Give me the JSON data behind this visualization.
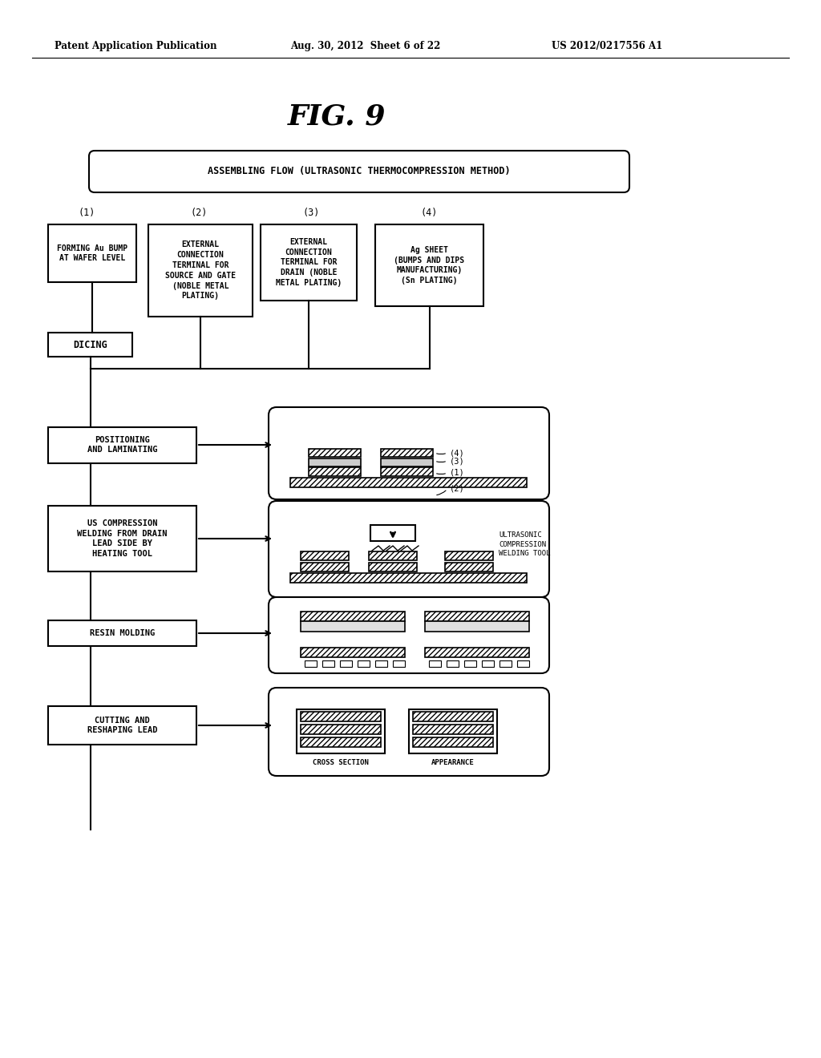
{
  "bg_color": "#ffffff",
  "header_left": "Patent Application Publication",
  "header_center": "Aug. 30, 2012  Sheet 6 of 22",
  "header_right": "US 2012/0217556 A1",
  "fig_title": "FIG. 9",
  "top_box_text": "ASSEMBLING FLOW (ULTRASONIC THERMOCOMPRESSION METHOD)",
  "step_labels": [
    "(1)",
    "(2)",
    "(3)",
    "(4)"
  ],
  "step_boxes": [
    "FORMING Au BUMP\nAT WAFER LEVEL",
    "EXTERNAL\nCONNECTION\nTERMINAL FOR\nSOURCE AND GATE\n(NOBLE METAL\nPLATING)",
    "EXTERNAL\nCONNECTION\nTERMINAL FOR\nDRAIN (NOBLE\nMETAL PLATING)",
    "Ag SHEET\n(BUMPS AND DIPS\nMANUFACTURING)\n(Sn PLATING)"
  ],
  "flow_steps": [
    "POSITIONING\nAND LAMINATING",
    "US COMPRESSION\nWELDING FROM DRAIN\nLEAD SIDE BY\nHEATING TOOL",
    "RESIN MOLDING",
    "CUTTING AND\nRESHAPING LEAD"
  ]
}
